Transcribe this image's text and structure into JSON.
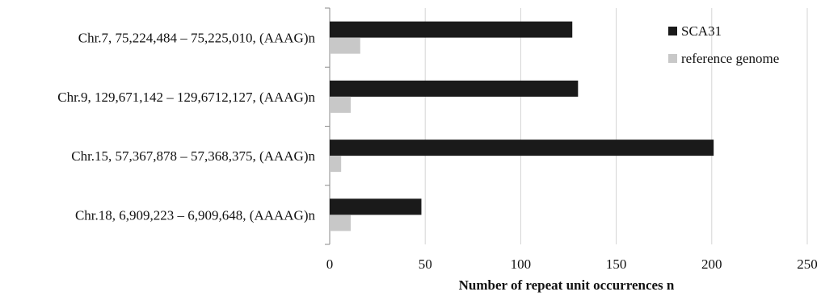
{
  "chart_data": {
    "type": "bar",
    "orientation": "horizontal",
    "categories": [
      "Chr.7, 75,224,484 – 75,225,010, (AAAG)n",
      "Chr.9, 129,671,142 – 129,6712,127, (AAAG)n",
      "Chr.15, 57,367,878 – 57,368,375, (AAAG)n",
      "Chr.18, 6,909,223 – 6,909,648, (AAAAG)n"
    ],
    "series": [
      {
        "name": "SCA31",
        "color": "#1a1a1a",
        "values": [
          127,
          130,
          201,
          48
        ]
      },
      {
        "name": "reference genome",
        "color": "#c8c8c8",
        "values": [
          16,
          11,
          6,
          11
        ]
      }
    ],
    "xlabel": "Number of repeat unit occurrences n",
    "ylabel": "",
    "xlim": [
      0,
      250
    ],
    "xticks": [
      0,
      50,
      100,
      150,
      200,
      250
    ],
    "grid": true,
    "legend_position": "top-right"
  }
}
